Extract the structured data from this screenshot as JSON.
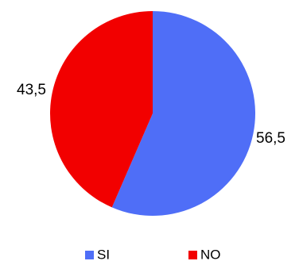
{
  "chart_data": {
    "type": "pie",
    "categories": [
      "SI",
      "NO"
    ],
    "values": [
      56.5,
      43.5
    ],
    "data_labels": [
      "56,5",
      "43,5"
    ],
    "colors": [
      "#4f6ef7",
      "#f20000"
    ],
    "start_angle_deg": 0,
    "direction": "clockwise",
    "legend": {
      "placement": "bottom",
      "entries": [
        "SI",
        "NO"
      ]
    }
  }
}
